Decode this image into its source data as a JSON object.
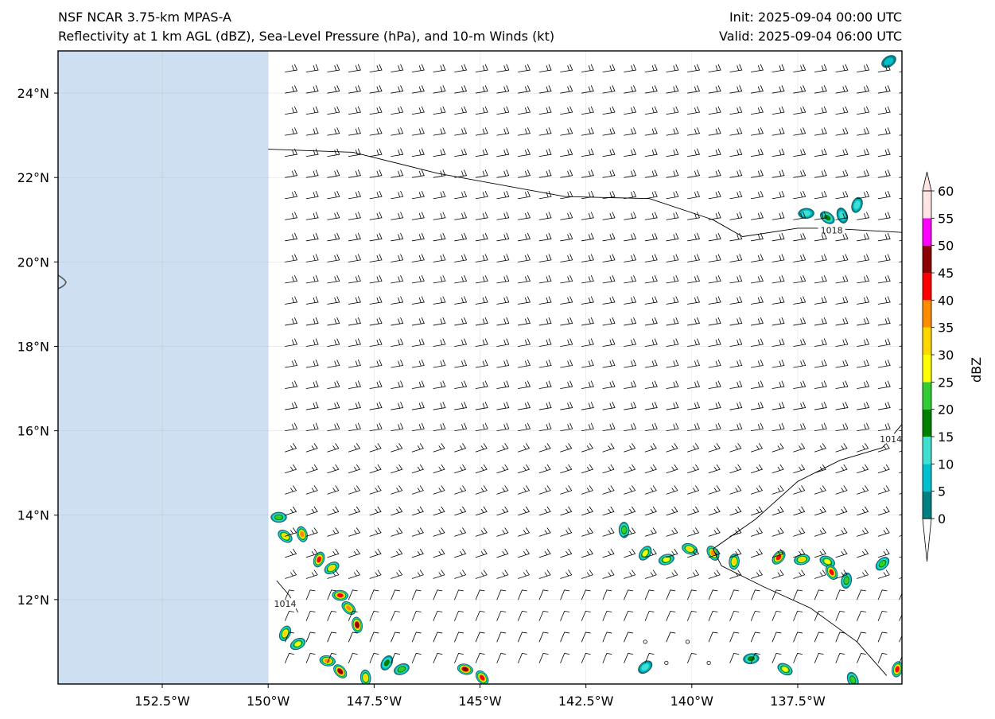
{
  "header": {
    "title_line1": "NSF NCAR 3.75-km MPAS-A",
    "title_line2": "Reflectivity at 1 km AGL (dBZ), Sea-Level Pressure (hPa), and 10-m Winds (kt)",
    "init": "Init: 2025-09-04 00:00 UTC",
    "valid": "Valid: 2025-09-04 06:00 UTC"
  },
  "map": {
    "lon_range": [
      -154.96,
      -135.04
    ],
    "lat_range": [
      10.0,
      25.0
    ],
    "lat_ticks": [
      {
        "value": 24,
        "label": "24°N"
      },
      {
        "value": 22,
        "label": "22°N"
      },
      {
        "value": 20,
        "label": "20°N"
      },
      {
        "value": 18,
        "label": "18°N"
      },
      {
        "value": 16,
        "label": "16°N"
      },
      {
        "value": 14,
        "label": "14°N"
      },
      {
        "value": 12,
        "label": "12°N"
      }
    ],
    "lon_ticks": [
      {
        "value": -152.5,
        "label": "152.5°W"
      },
      {
        "value": -150,
        "label": "150°W"
      },
      {
        "value": -147.5,
        "label": "147.5°W"
      },
      {
        "value": -145,
        "label": "145°W"
      },
      {
        "value": -142.5,
        "label": "142.5°W"
      },
      {
        "value": -140,
        "label": "140°W"
      },
      {
        "value": -137.5,
        "label": "137.5°W"
      }
    ],
    "no_data_east_lon": -150,
    "no_data_color": "#cddff0",
    "isobars": [
      {
        "label": "1018",
        "label_at": [
          -136.7,
          20.75
        ],
        "points": [
          [
            -150,
            22.67
          ],
          [
            -148,
            22.6
          ],
          [
            -146,
            22.1
          ],
          [
            -143,
            21.55
          ],
          [
            -141,
            21.5
          ],
          [
            -139.5,
            21.0
          ],
          [
            -138.8,
            20.6
          ],
          [
            -137.5,
            20.8
          ],
          [
            -136.8,
            20.8
          ],
          [
            -135.04,
            20.7
          ]
        ]
      },
      {
        "label": "1014",
        "label_at": [
          -135.3,
          15.8
        ],
        "points": [
          [
            -135.0,
            16.2
          ],
          [
            -135.5,
            15.6
          ],
          [
            -136.5,
            15.3
          ],
          [
            -137.5,
            14.8
          ],
          [
            -138.5,
            13.9
          ],
          [
            -139.5,
            13.2
          ],
          [
            -139.3,
            12.8
          ],
          [
            -138.3,
            12.3
          ],
          [
            -137.2,
            11.8
          ],
          [
            -136.1,
            11.0
          ],
          [
            -135.4,
            10.2
          ]
        ]
      },
      {
        "label": "1014",
        "label_at": [
          -149.6,
          11.9
        ],
        "points": [
          [
            -149.8,
            12.45
          ],
          [
            -149.5,
            12.1
          ],
          [
            -149.3,
            11.7
          ]
        ]
      }
    ],
    "reflectivity_cells": [
      {
        "lon": -149.75,
        "lat": 13.95,
        "dbz": 20
      },
      {
        "lon": -149.6,
        "lat": 13.5,
        "dbz": 30
      },
      {
        "lon": -149.2,
        "lat": 13.55,
        "dbz": 35
      },
      {
        "lon": -148.8,
        "lat": 12.95,
        "dbz": 40
      },
      {
        "lon": -148.5,
        "lat": 12.75,
        "dbz": 30
      },
      {
        "lon": -148.3,
        "lat": 12.1,
        "dbz": 40
      },
      {
        "lon": -148.1,
        "lat": 11.8,
        "dbz": 35
      },
      {
        "lon": -147.9,
        "lat": 11.4,
        "dbz": 45
      },
      {
        "lon": -149.6,
        "lat": 11.2,
        "dbz": 30
      },
      {
        "lon": -149.3,
        "lat": 10.95,
        "dbz": 25
      },
      {
        "lon": -148.6,
        "lat": 10.55,
        "dbz": 35
      },
      {
        "lon": -148.3,
        "lat": 10.3,
        "dbz": 45
      },
      {
        "lon": -147.7,
        "lat": 10.15,
        "dbz": 30
      },
      {
        "lon": -147.2,
        "lat": 10.5,
        "dbz": 15
      },
      {
        "lon": -146.85,
        "lat": 10.35,
        "dbz": 20
      },
      {
        "lon": -145.35,
        "lat": 10.35,
        "dbz": 45
      },
      {
        "lon": -144.95,
        "lat": 10.15,
        "dbz": 40
      },
      {
        "lon": -141.6,
        "lat": 13.65,
        "dbz": 20
      },
      {
        "lon": -141.1,
        "lat": 13.1,
        "dbz": 25
      },
      {
        "lon": -140.6,
        "lat": 12.95,
        "dbz": 25
      },
      {
        "lon": -140.05,
        "lat": 13.2,
        "dbz": 30
      },
      {
        "lon": -139.5,
        "lat": 13.1,
        "dbz": 35
      },
      {
        "lon": -139.0,
        "lat": 12.9,
        "dbz": 30
      },
      {
        "lon": -137.95,
        "lat": 13.0,
        "dbz": 40
      },
      {
        "lon": -137.4,
        "lat": 12.95,
        "dbz": 30
      },
      {
        "lon": -136.8,
        "lat": 12.9,
        "dbz": 25
      },
      {
        "lon": -136.7,
        "lat": 12.65,
        "dbz": 40
      },
      {
        "lon": -136.35,
        "lat": 12.45,
        "dbz": 20
      },
      {
        "lon": -135.5,
        "lat": 12.85,
        "dbz": 20
      },
      {
        "lon": -138.6,
        "lat": 10.6,
        "dbz": 15
      },
      {
        "lon": -137.8,
        "lat": 10.35,
        "dbz": 25
      },
      {
        "lon": -136.2,
        "lat": 10.1,
        "dbz": 20
      },
      {
        "lon": -135.15,
        "lat": 10.35,
        "dbz": 40
      },
      {
        "lon": -141.1,
        "lat": 10.4,
        "dbz": 10
      },
      {
        "lon": -137.3,
        "lat": 21.15,
        "dbz": 10
      },
      {
        "lon": -136.8,
        "lat": 21.05,
        "dbz": 15
      },
      {
        "lon": -136.45,
        "lat": 21.1,
        "dbz": 10
      },
      {
        "lon": -136.1,
        "lat": 21.35,
        "dbz": 10
      },
      {
        "lon": -135.35,
        "lat": 24.75,
        "dbz": 5
      }
    ],
    "wind_grid": {
      "lon_start": -149.6,
      "lon_step": 0.5,
      "lon_count": 30,
      "lat_start": 24.5,
      "lat_step": -0.5,
      "lat_count": 29
    }
  },
  "colorbar": {
    "label": "dBZ",
    "ticks": [
      "60",
      "55",
      "50",
      "45",
      "40",
      "35",
      "30",
      "25",
      "20",
      "15",
      "10",
      "5",
      "0"
    ],
    "bins": [
      {
        "from": 0,
        "to": 5,
        "color": "#008080"
      },
      {
        "from": 5,
        "to": 10,
        "color": "#00c0d0"
      },
      {
        "from": 10,
        "to": 15,
        "color": "#40e0d0"
      },
      {
        "from": 15,
        "to": 20,
        "color": "#008000"
      },
      {
        "from": 20,
        "to": 25,
        "color": "#32cd32"
      },
      {
        "from": 25,
        "to": 30,
        "color": "#ffff00"
      },
      {
        "from": 30,
        "to": 35,
        "color": "#ffd700"
      },
      {
        "from": 35,
        "to": 40,
        "color": "#ff8c00"
      },
      {
        "from": 40,
        "to": 45,
        "color": "#ff0000"
      },
      {
        "from": 45,
        "to": 50,
        "color": "#8b0000"
      },
      {
        "from": 50,
        "to": 55,
        "color": "#ff00ff"
      },
      {
        "from": 55,
        "to": 60,
        "color": "#ffe4e1"
      }
    ],
    "over_color": "#ffe4e1",
    "under_color": "#ffffff"
  }
}
